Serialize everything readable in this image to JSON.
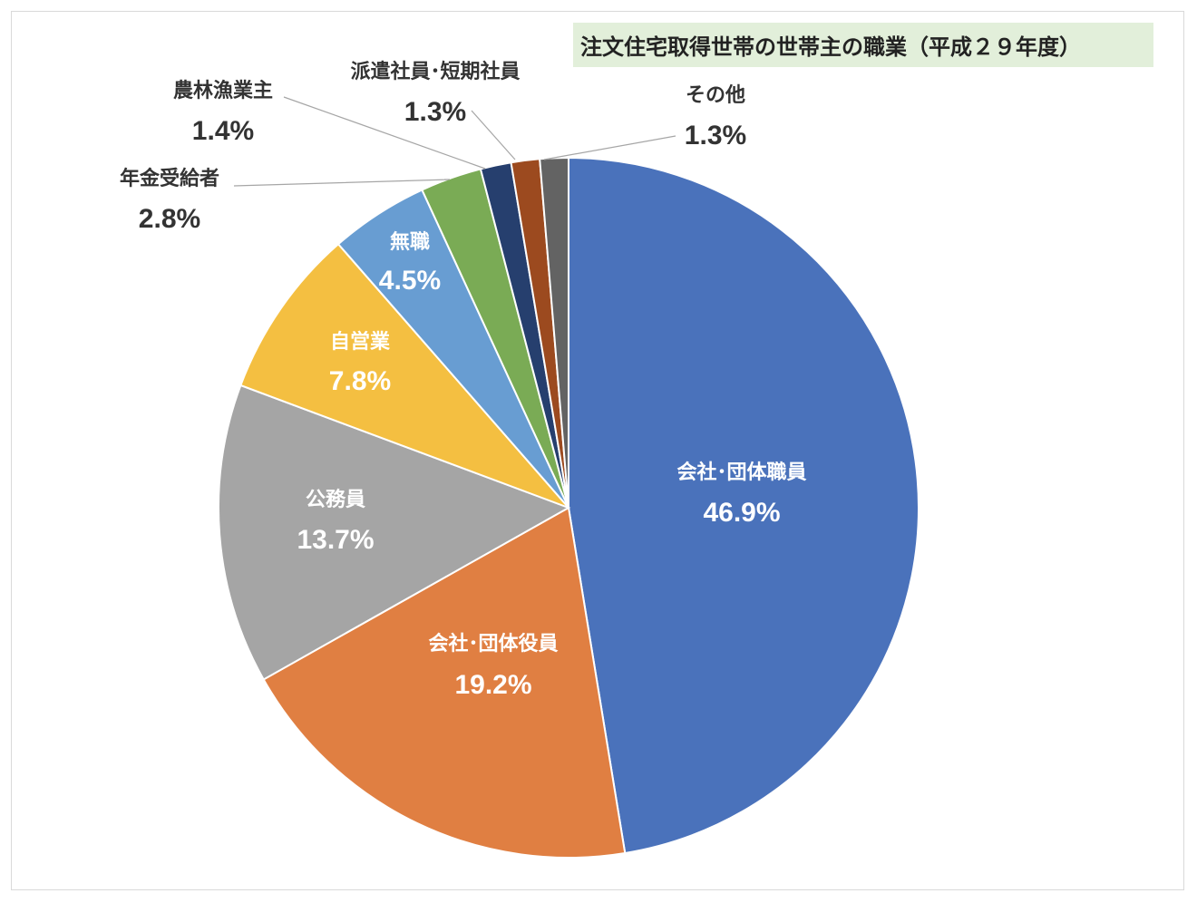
{
  "chart_data": {
    "type": "pie",
    "title": "注文住宅取得世帯の世帯主の職業（平成２９年度）",
    "start_angle_deg": 0,
    "direction": "clockwise",
    "slices": [
      {
        "label": "会社･団体職員",
        "value": 46.9,
        "value_text": "46.9%",
        "color": "#4a72bb",
        "label_color": "#ffffff",
        "placement": "inside"
      },
      {
        "label": "会社･団体役員",
        "value": 19.2,
        "value_text": "19.2%",
        "color": "#e07f42",
        "label_color": "#ffffff",
        "placement": "inside"
      },
      {
        "label": "公務員",
        "value": 13.7,
        "value_text": "13.7%",
        "color": "#a5a5a5",
        "label_color": "#ffffff",
        "placement": "inside"
      },
      {
        "label": "自営業",
        "value": 7.8,
        "value_text": "7.8%",
        "color": "#f4bf41",
        "label_color": "#ffffff",
        "placement": "inside"
      },
      {
        "label": "無職",
        "value": 4.5,
        "value_text": "4.5%",
        "color": "#689dd2",
        "label_color": "#ffffff",
        "placement": "inside"
      },
      {
        "label": "年金受給者",
        "value": 2.8,
        "value_text": "2.8%",
        "color": "#7aab55",
        "label_color": "#333333",
        "placement": "outside"
      },
      {
        "label": "農林漁業主",
        "value": 1.4,
        "value_text": "1.4%",
        "color": "#263f6e",
        "label_color": "#333333",
        "placement": "outside"
      },
      {
        "label": "派遣社員･短期社員",
        "value": 1.3,
        "value_text": "1.3%",
        "color": "#9c4a1f",
        "label_color": "#333333",
        "placement": "outside"
      },
      {
        "label": "その他",
        "value": 1.3,
        "value_text": "1.3%",
        "color": "#636363",
        "label_color": "#333333",
        "placement": "outside"
      }
    ],
    "legend": "none"
  }
}
